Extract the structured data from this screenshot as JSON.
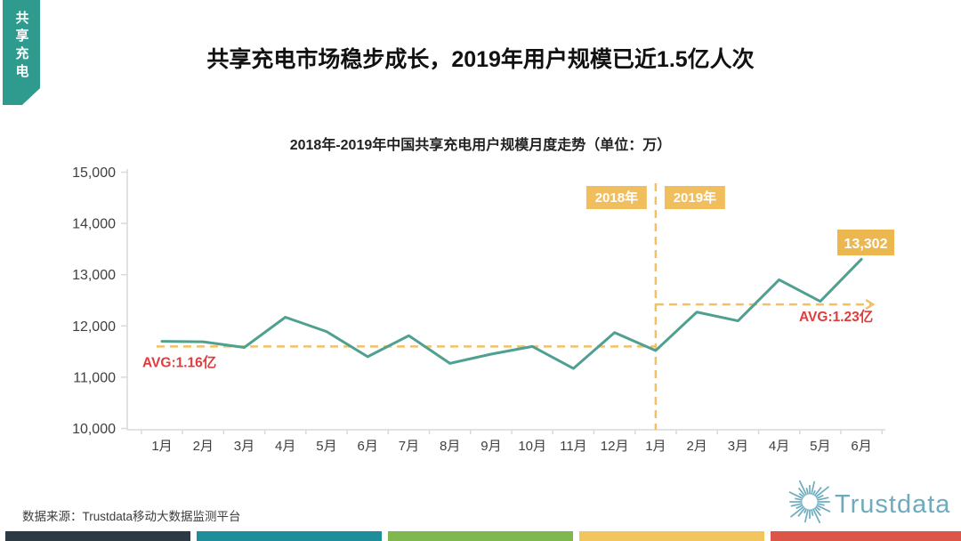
{
  "side_tab": {
    "label": "共享充电",
    "bg": "#2F9A8E",
    "text_color": "#FFFFFF"
  },
  "header": {
    "title": "共享充电市场稳步成长，2019年用户规模已近1.5亿人次"
  },
  "chart_data": {
    "type": "line",
    "title": "2018年-2019年中国共享充电用户规模月度走势（单位：万）",
    "unit": "万",
    "categories": [
      "1月",
      "2月",
      "3月",
      "4月",
      "5月",
      "6月",
      "7月",
      "8月",
      "9月",
      "10月",
      "11月",
      "12月",
      "1月",
      "2月",
      "3月",
      "4月",
      "5月",
      "6月"
    ],
    "values": [
      11700,
      11690,
      11580,
      12170,
      11890,
      11400,
      11810,
      11270,
      11450,
      11600,
      11170,
      11870,
      11520,
      12270,
      12100,
      12900,
      12480,
      13302
    ],
    "ylim": [
      10000,
      15000
    ],
    "y_ticks": [
      10000,
      11000,
      12000,
      13000,
      14000,
      15000
    ],
    "grid": false,
    "legend": false,
    "line_color": "#4FA091",
    "dash_color": "#F2C166",
    "axis_color": "#D9D9D9",
    "tick_text_color": "#404040",
    "divider_index": 12,
    "year_labels": [
      "2018年",
      "2019年"
    ],
    "year_badge_bg": "#F0BE5C",
    "avg_lines": [
      {
        "label": "AVG:1.16亿",
        "value": 11600,
        "span": "2018"
      },
      {
        "label": "AVG:1.23亿",
        "value": 12420,
        "span": "2019"
      }
    ],
    "avg_label_color": "#E23B3B",
    "endpoint_label": "13,302",
    "endpoint_value": 13302,
    "endpoint_badge_bg": "#EDB750",
    "badge_text_color": "#FFFFFF"
  },
  "footer": {
    "source": "数据来源：Trustdata移动大数据监测平台",
    "logo_text": "Trustdata",
    "logo_color": "#6CACBE"
  },
  "bottom_bars": [
    "#2B3A44",
    "#1E8E9B",
    "#7FB84E",
    "#F3C55E",
    "#DD5549"
  ]
}
